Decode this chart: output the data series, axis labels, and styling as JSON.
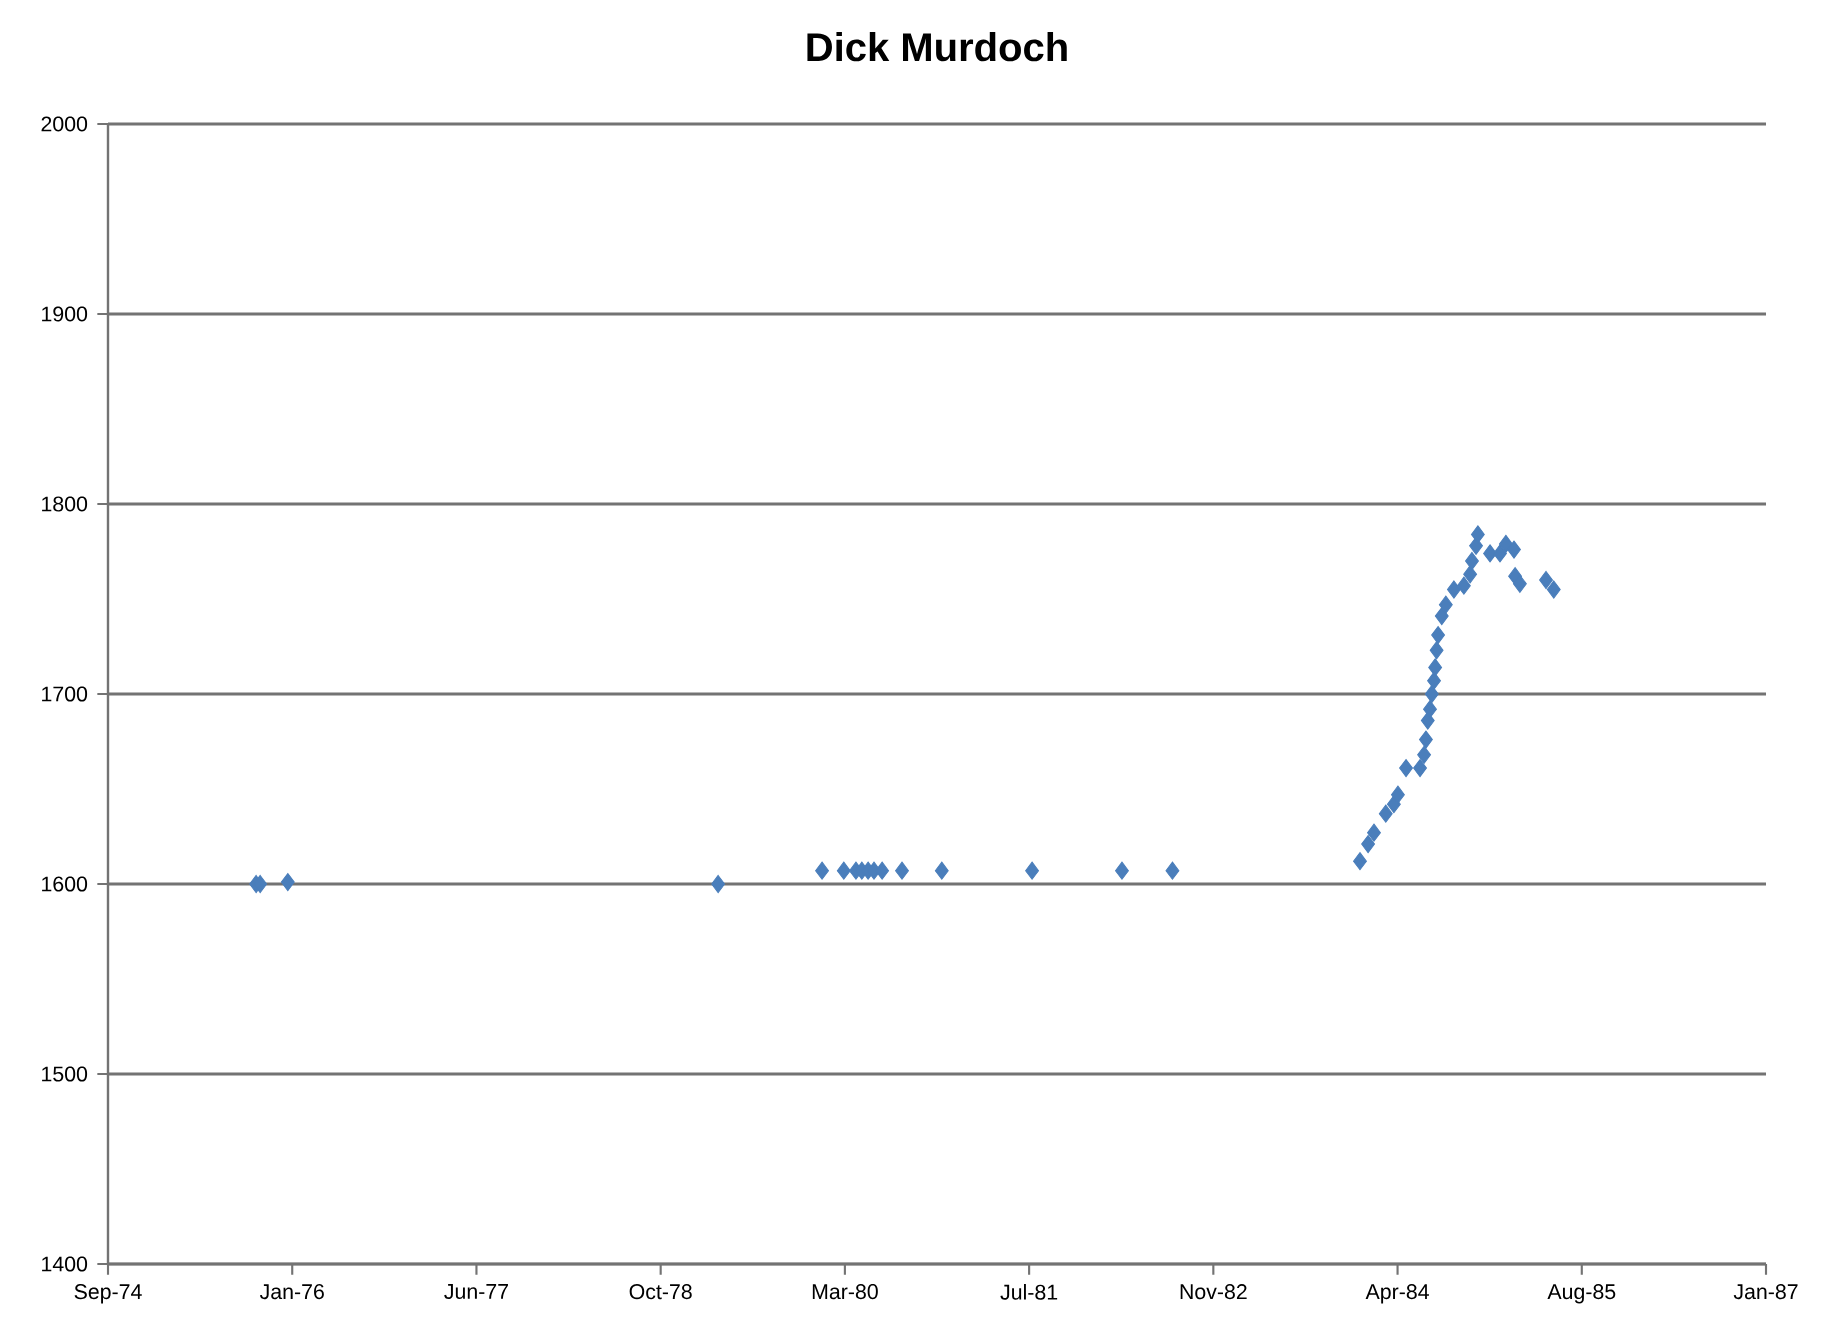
{
  "chart_data": {
    "type": "scatter",
    "title": "Dick Murdoch",
    "marker": "diamond",
    "grid": "y",
    "xlim": [
      "1974-09-11",
      "1987-01-06"
    ],
    "xticks": [
      {
        "value": "1974-09-11",
        "label": "Sep-74"
      },
      {
        "value": "1976-01-24",
        "label": "Jan-76"
      },
      {
        "value": "1977-06-07",
        "label": "Jun-77"
      },
      {
        "value": "1978-10-20",
        "label": "Oct-78"
      },
      {
        "value": "1980-03-03",
        "label": "Mar-80"
      },
      {
        "value": "1981-07-16",
        "label": "Jul-81"
      },
      {
        "value": "1982-11-28",
        "label": "Nov-82"
      },
      {
        "value": "1984-04-11",
        "label": "Apr-84"
      },
      {
        "value": "1985-08-24",
        "label": "Aug-85"
      },
      {
        "value": "1987-01-06",
        "label": "Jan-87"
      }
    ],
    "ylim": [
      1400,
      2000
    ],
    "yticks": [
      1400,
      1500,
      1600,
      1700,
      1800,
      1900,
      2000
    ],
    "series": [
      {
        "color": "#4a7ebb",
        "x": [
          "1975-10-18",
          "1975-10-29",
          "1976-01-12",
          "1979-03-25",
          "1980-01-01",
          "1980-02-29",
          "1980-04-02",
          "1980-04-18",
          "1980-05-05",
          "1980-05-21",
          "1980-06-12",
          "1980-08-05",
          "1980-11-21",
          "1981-07-24",
          "1982-03-25",
          "1982-08-09",
          "1983-12-31",
          "1984-01-22",
          "1984-02-07",
          "1984-03-10",
          "1984-04-01",
          "1984-04-12",
          "1984-05-04",
          "1984-06-11",
          "1984-06-22",
          "1984-06-27",
          "1984-07-02",
          "1984-07-08",
          "1984-07-13",
          "1984-07-19",
          "1984-07-22",
          "1984-07-26",
          "1984-07-30",
          "1984-08-09",
          "1984-08-20",
          "1984-09-11",
          "1984-10-08",
          "1984-10-25",
          "1984-10-30",
          "1984-11-10",
          "1984-11-15",
          "1984-12-18",
          "1985-01-14",
          "1985-01-30",
          "1985-02-21",
          "1985-02-24",
          "1985-03-09",
          "1985-05-19",
          "1985-06-09"
        ],
        "values": [
          1600,
          1600,
          1601,
          1600,
          1607,
          1607,
          1607,
          1607,
          1607,
          1607,
          1607,
          1607,
          1607,
          1607,
          1607,
          1607,
          1612,
          1621,
          1627,
          1637,
          1642,
          1647,
          1661,
          1661,
          1668,
          1676,
          1686,
          1692,
          1700,
          1707,
          1714,
          1723,
          1731,
          1741,
          1747,
          1755,
          1757,
          1763,
          1770,
          1778,
          1784,
          1774,
          1774,
          1779,
          1776,
          1762,
          1758,
          1760,
          1755
        ]
      }
    ]
  }
}
